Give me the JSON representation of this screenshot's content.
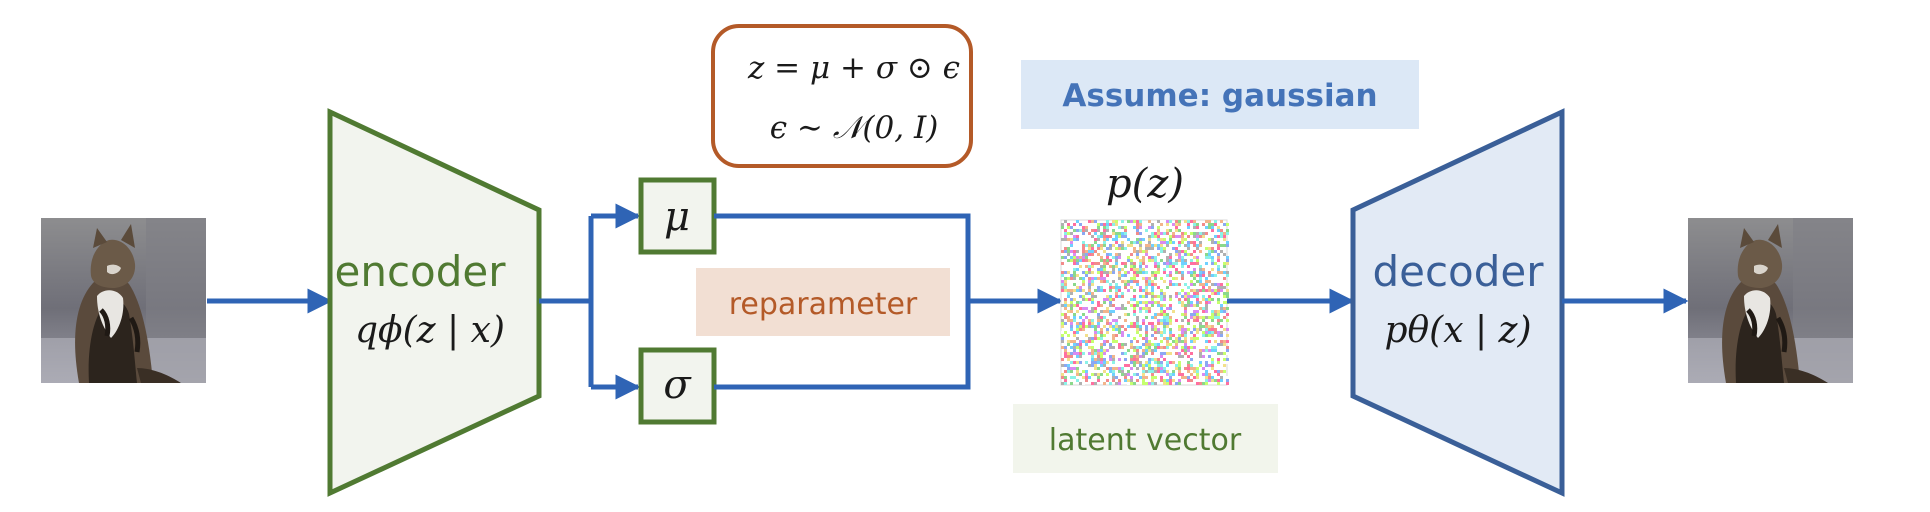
{
  "encoder": {
    "label": "encoder",
    "formula": "qϕ(z | x)"
  },
  "decoder": {
    "label": "decoder",
    "formula": "pθ(x | z)"
  },
  "latent": {
    "mu": "μ",
    "sigma": "σ",
    "prior": "p(z)",
    "vector_label": "latent vector"
  },
  "reparam": {
    "label": "reparameter",
    "eq1": "z = μ + σ ⊙ ϵ",
    "eq2": "ϵ ∼ 𝒩(0, I)"
  },
  "assumption": {
    "label": "Assume: gaussian"
  },
  "colors": {
    "green": "#507A32",
    "green_fill": "#F2F4EE",
    "blue": "#2F64B5",
    "blue_dark": "#3A5F98",
    "blue_fill": "#E2EAF5",
    "orange": "#B45A28",
    "orange_fill": "#F2DFD3",
    "assume_fill": "#DCE8F6",
    "assume_text": "#4473B8",
    "latent_fill": "#F2F5EC"
  },
  "images": {
    "input": "cat-photo-input",
    "output": "cat-photo-output",
    "noise": "noise-image"
  }
}
